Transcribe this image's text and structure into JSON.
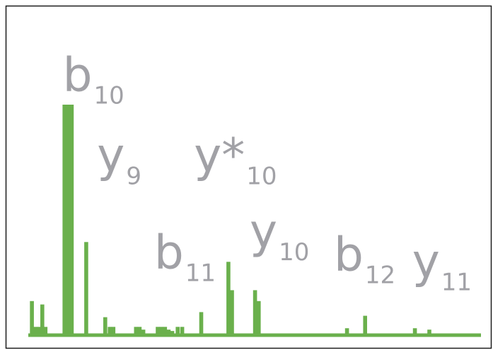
{
  "chart_data": {
    "type": "bar",
    "title": "",
    "xlabel": "",
    "ylabel": "",
    "xlim": [
      0,
      100
    ],
    "ylim": [
      0,
      100
    ],
    "grid": false,
    "bar_color": "#6ab04c",
    "label_color": "#a1a1a6",
    "peaks": [
      {
        "x": 0.8,
        "y": 14.8
      },
      {
        "x": 1.6,
        "y": 3.6
      },
      {
        "x": 2.4,
        "y": 3.6
      },
      {
        "x": 3.1,
        "y": 13.3
      },
      {
        "x": 3.8,
        "y": 3.6
      },
      {
        "x": 8.0,
        "y": 100.0
      },
      {
        "x": 8.8,
        "y": 100.0
      },
      {
        "x": 9.6,
        "y": 100.0
      },
      {
        "x": 12.8,
        "y": 40.4
      },
      {
        "x": 17.0,
        "y": 7.8
      },
      {
        "x": 18.0,
        "y": 3.6
      },
      {
        "x": 18.8,
        "y": 3.6
      },
      {
        "x": 23.8,
        "y": 3.6
      },
      {
        "x": 24.6,
        "y": 3.6
      },
      {
        "x": 25.4,
        "y": 2.4
      },
      {
        "x": 28.6,
        "y": 3.6
      },
      {
        "x": 29.4,
        "y": 3.6
      },
      {
        "x": 30.2,
        "y": 3.6
      },
      {
        "x": 31.0,
        "y": 2.4
      },
      {
        "x": 31.8,
        "y": 1.8
      },
      {
        "x": 33.0,
        "y": 3.6
      },
      {
        "x": 34.0,
        "y": 3.6
      },
      {
        "x": 38.2,
        "y": 10.0
      },
      {
        "x": 44.2,
        "y": 31.8
      },
      {
        "x": 45.0,
        "y": 19.5
      },
      {
        "x": 50.1,
        "y": 19.5
      },
      {
        "x": 50.9,
        "y": 14.8
      },
      {
        "x": 70.4,
        "y": 3.0
      },
      {
        "x": 74.4,
        "y": 8.4
      },
      {
        "x": 85.4,
        "y": 3.0
      },
      {
        "x": 88.6,
        "y": 2.4
      }
    ],
    "annotations": [
      {
        "base": "b",
        "sub": "10",
        "x": 7.6,
        "y": 106.0
      },
      {
        "base": "y",
        "sub": "9",
        "x": 15.2,
        "y": 71.0
      },
      {
        "base": "y*",
        "sub": "10",
        "x": 36.6,
        "y": 71.0
      },
      {
        "base": "b",
        "sub": "11",
        "x": 27.8,
        "y": 29.0
      },
      {
        "base": "y",
        "sub": "10",
        "x": 48.9,
        "y": 38.0
      },
      {
        "base": "b",
        "sub": "12",
        "x": 67.5,
        "y": 28.0
      },
      {
        "base": "y",
        "sub": "11",
        "x": 84.8,
        "y": 25.0
      }
    ]
  }
}
